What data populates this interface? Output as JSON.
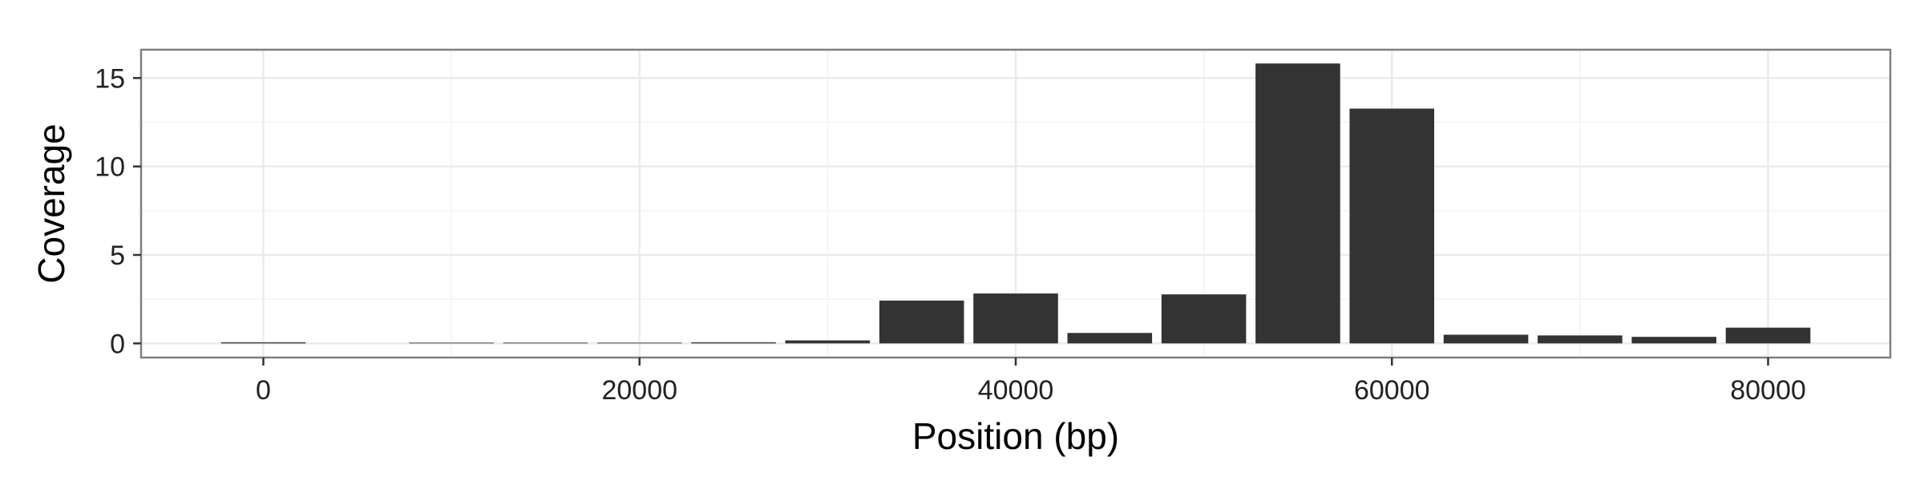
{
  "chart_data": {
    "type": "bar",
    "title": "",
    "xlabel": "Position (bp)",
    "ylabel": "Coverage",
    "xlim": [
      -6500,
      86500
    ],
    "ylim": [
      -0.8,
      16.6
    ],
    "x_ticks": [
      0,
      20000,
      40000,
      60000,
      80000
    ],
    "y_ticks": [
      0,
      5,
      10,
      15
    ],
    "x_minor_ticks": [
      10000,
      30000,
      50000,
      70000
    ],
    "y_minor_ticks": [
      2.5,
      7.5,
      12.5
    ],
    "grid": true,
    "bar_width": 4500,
    "x": [
      0,
      5000,
      10000,
      15000,
      20000,
      25000,
      30000,
      35000,
      40000,
      45000,
      50000,
      55000,
      60000,
      65000,
      70000,
      75000,
      80000
    ],
    "values": [
      0.06,
      0.0,
      0.04,
      0.04,
      0.04,
      0.06,
      0.17,
      2.42,
      2.82,
      0.59,
      2.77,
      15.82,
      13.27,
      0.49,
      0.45,
      0.37,
      0.89
    ],
    "colors": {
      "bar": "#333333",
      "panel_background": "#ffffff",
      "panel_border": "#7f7f7f",
      "grid_major": "#ebebeb",
      "grid_minor": "#f5f5f5"
    }
  }
}
